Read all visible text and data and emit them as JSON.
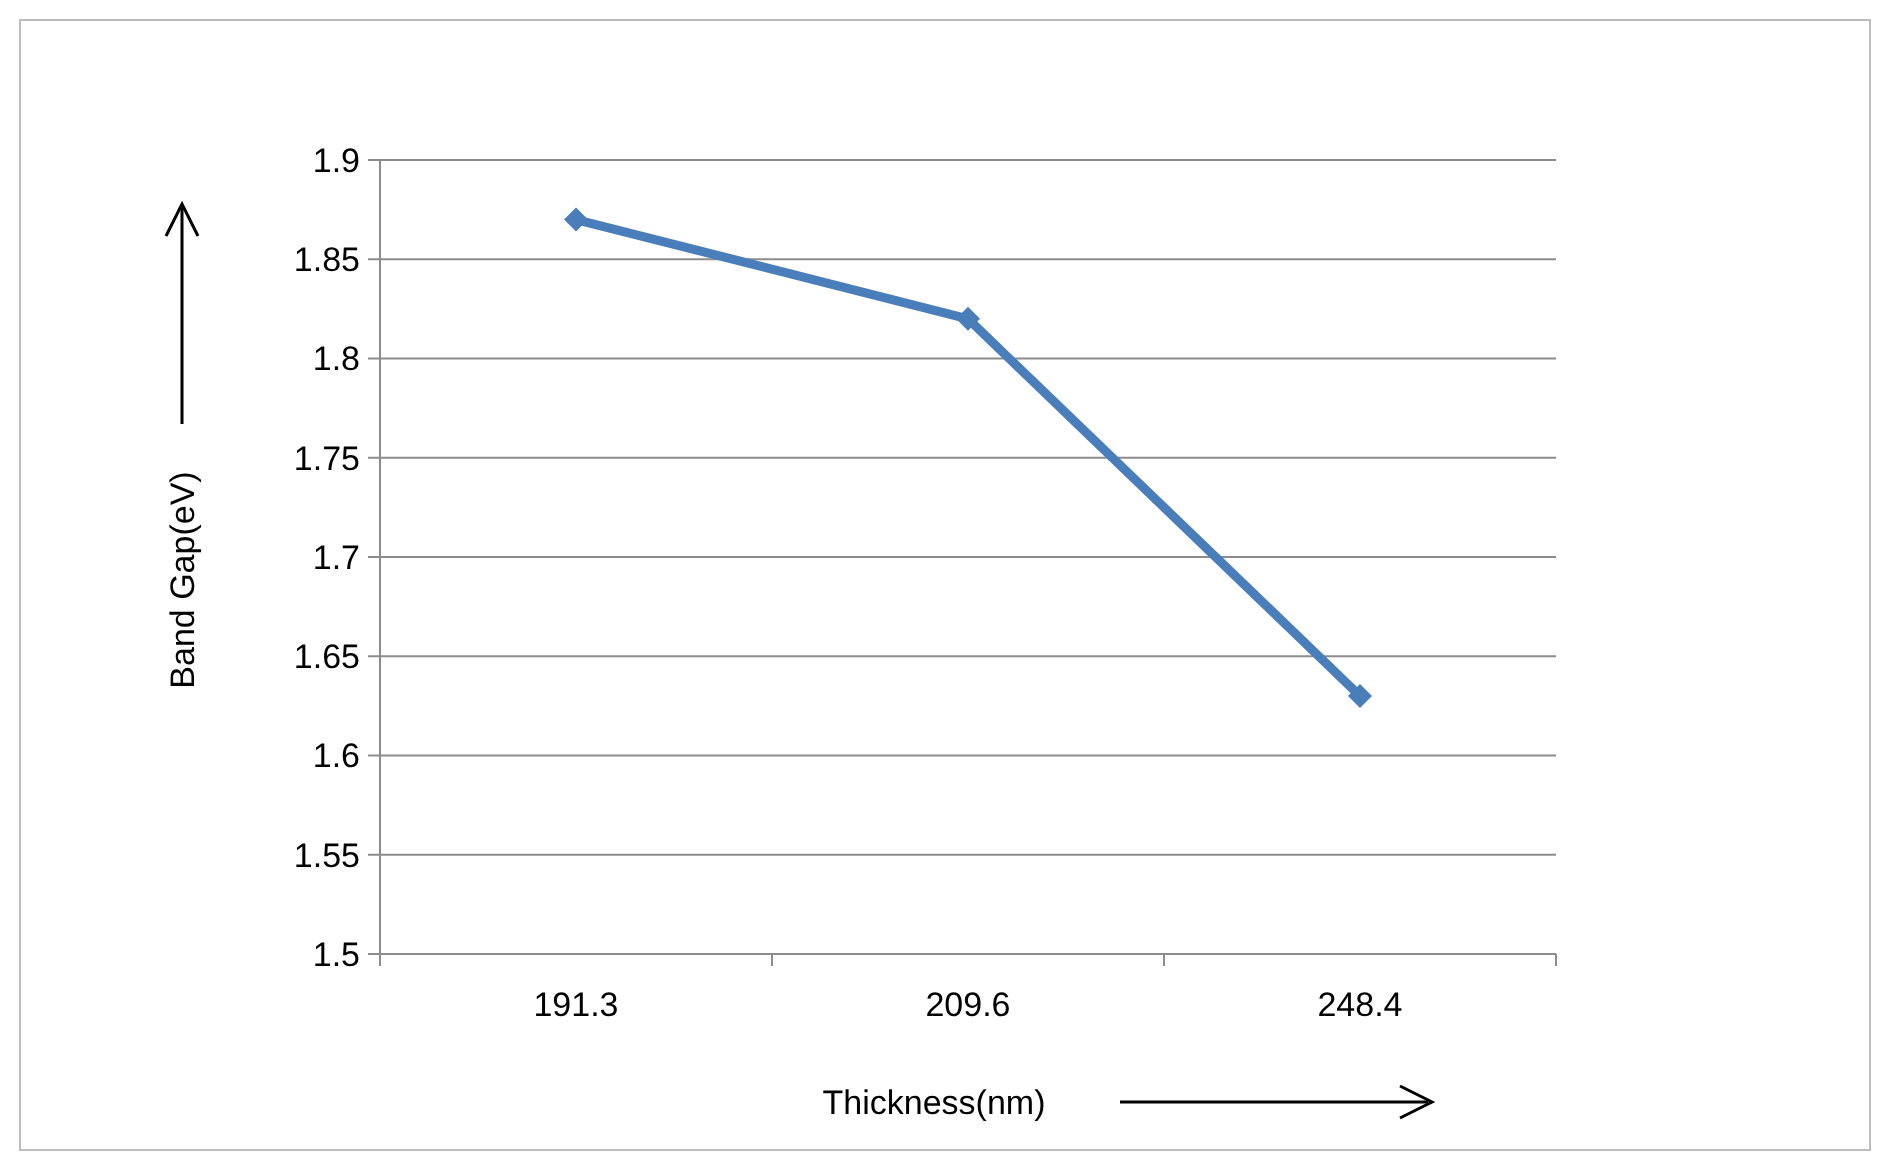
{
  "chart_data": {
    "type": "line",
    "xlabel": "Thickness(nm)",
    "ylabel": "Band Gap(eV)",
    "categories": [
      "191.3",
      "209.6",
      "248.4"
    ],
    "series": [
      {
        "color": "#4a7ebb",
        "values": [
          1.87,
          1.82,
          1.63
        ]
      }
    ],
    "ylim": [
      1.5,
      1.9
    ],
    "yticks": [
      1.5,
      1.55,
      1.6,
      1.65,
      1.7,
      1.75,
      1.8,
      1.85,
      1.9
    ],
    "grid": "y",
    "marker": "diamond",
    "line_style": "solid"
  }
}
